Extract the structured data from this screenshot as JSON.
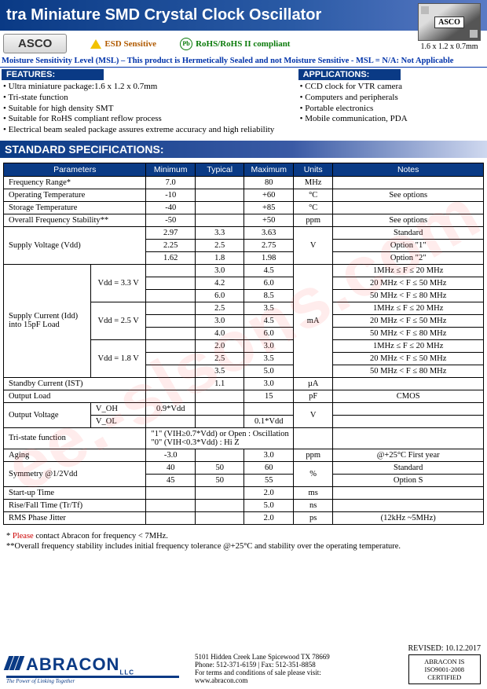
{
  "title": "tra Miniature SMD Crystal Clock Oscillator",
  "part": "ASCO",
  "esd_label": "ESD Sensitive",
  "rohs_label": "RoHS/RoHS II compliant",
  "chip_dim": "1.6 x 1.2 x 0.7mm",
  "chip_text": "ASCO",
  "msl": "Moisture Sensitivity Level (MSL) – This product is Hermetically Sealed and not Moisture Sensitive - MSL = N/A: Not Applicable",
  "features_label": "FEATURES:",
  "features": [
    "Ultra miniature package:1.6 x 1.2 x 0.7mm",
    "Tri-state function",
    "Suitable for high density SMT",
    "Suitable for RoHS compliant reflow process",
    "Electrical beam sealed package assures extreme accuracy and high reliability"
  ],
  "apps_label": "APPLICATIONS:",
  "apps": [
    "CCD clock for VTR camera",
    "Computers and peripherals",
    "Portable electronics",
    "Mobile communication, PDA"
  ],
  "spec_header": "STANDARD SPECIFICATIONS:",
  "cols": [
    "Parameters",
    "Minimum",
    "Typical",
    "Maximum",
    "Units",
    "Notes"
  ],
  "r_freq": {
    "p": "Frequency Range*",
    "min": "7.0",
    "typ": "",
    "max": "80",
    "u": "MHz",
    "n": ""
  },
  "r_optemp": {
    "p": "Operating Temperature",
    "min": "-10",
    "typ": "",
    "max": "+60",
    "u": "°C",
    "n": "See options"
  },
  "r_sttemp": {
    "p": "Storage Temperature",
    "min": "-40",
    "typ": "",
    "max": "+85",
    "u": "°C",
    "n": ""
  },
  "r_stab": {
    "p": "Overall Frequency Stability**",
    "min": "-50",
    "typ": "",
    "max": "+50",
    "u": "ppm",
    "n": "See options"
  },
  "vdd": {
    "p": "Supply Voltage (Vdd)",
    "u": "V",
    "rows": [
      {
        "min": "2.97",
        "typ": "3.3",
        "max": "3.63",
        "n": "Standard"
      },
      {
        "min": "2.25",
        "typ": "2.5",
        "max": "2.75",
        "n": "Option \"1\""
      },
      {
        "min": "1.62",
        "typ": "1.8",
        "max": "1.98",
        "n": "Option \"2\""
      }
    ]
  },
  "idd": {
    "p": "Supply Current (Idd) into 15pF Load",
    "u": "mA",
    "groups": [
      {
        "sub": "Vdd = 3.3 V",
        "rows": [
          {
            "typ": "3.0",
            "max": "4.5",
            "n": "1MHz ≤ F ≤ 20 MHz"
          },
          {
            "typ": "4.2",
            "max": "6.0",
            "n": "20 MHz < F ≤ 50 MHz"
          },
          {
            "typ": "6.0",
            "max": "8.5",
            "n": "50 MHz < F ≤ 80 MHz"
          }
        ]
      },
      {
        "sub": "Vdd = 2.5 V",
        "rows": [
          {
            "typ": "2.5",
            "max": "3.5",
            "n": "1MHz ≤ F ≤ 20 MHz"
          },
          {
            "typ": "3.0",
            "max": "4.5",
            "n": "20 MHz < F ≤ 50 MHz"
          },
          {
            "typ": "4.0",
            "max": "6.0",
            "n": "50 MHz < F ≤ 80 MHz"
          }
        ]
      },
      {
        "sub": "Vdd = 1.8 V",
        "rows": [
          {
            "typ": "2.0",
            "max": "3.0",
            "n": "1MHz ≤ F ≤ 20 MHz"
          },
          {
            "typ": "2.5",
            "max": "3.5",
            "n": "20 MHz < F ≤ 50 MHz"
          },
          {
            "typ": "3.5",
            "max": "5.0",
            "n": "50 MHz < F ≤ 80 MHz"
          }
        ]
      }
    ]
  },
  "r_ist": {
    "p": "Standby Current (IST)",
    "min": "",
    "typ": "1.1",
    "max": "3.0",
    "u": "µA",
    "n": ""
  },
  "r_load": {
    "p": "Output Load",
    "min": "",
    "typ": "",
    "max": "15",
    "u": "pF",
    "n": "CMOS"
  },
  "vout": {
    "p": "Output Voltage",
    "u": "V",
    "rows": [
      {
        "sub": "V_OH",
        "min": "0.9*Vdd",
        "typ": "",
        "max": ""
      },
      {
        "sub": "V_OL",
        "min": "",
        "typ": "",
        "max": "0.1*Vdd"
      }
    ]
  },
  "r_tri": {
    "p": "Tri-state function",
    "text": "\"1\" (VIH≥0.7*Vdd) or Open : Oscillation\n\"0\" (VIH<0.3*Vdd) : Hi Z"
  },
  "r_aging": {
    "p": "Aging",
    "min": "-3.0",
    "typ": "",
    "max": "3.0",
    "u": "ppm",
    "n": "@+25°C  First year"
  },
  "sym": {
    "p": "Symmetry @1/2Vdd",
    "u": "%",
    "rows": [
      {
        "min": "40",
        "typ": "50",
        "max": "60",
        "n": "Standard"
      },
      {
        "min": "45",
        "typ": "50",
        "max": "55",
        "n": "Option S"
      }
    ]
  },
  "r_start": {
    "p": "Start-up Time",
    "min": "",
    "typ": "",
    "max": "2.0",
    "u": "ms",
    "n": ""
  },
  "r_rise": {
    "p": "Rise/Fall Time (Tr/Tf)",
    "min": "",
    "typ": "",
    "max": "5.0",
    "u": "ns",
    "n": ""
  },
  "r_jit": {
    "p": "RMS Phase Jitter",
    "min": "",
    "typ": "",
    "max": "2.0",
    "u": "ps",
    "n": "(12kHz ~5MHz)"
  },
  "foot1_pre": "* ",
  "foot1_red": "Please",
  "foot1_post": " contact Abracon for frequency < 7MHz.",
  "foot2": "**Overall frequency stability includes initial frequency tolerance @+25°C and stability over the operating temperature.",
  "revised": "REVISED: 10.12.2017",
  "logo": "ABRACON",
  "logo_sub": "LLC",
  "logo_tag": "The Power of Linking Together",
  "addr1": "5101 Hidden Creek Lane Spicewood TX 78669",
  "addr2": "Phone: 512-371-6159 | Fax: 512-351-8858",
  "addr3": "For terms and conditions of sale please visit:",
  "addr4": "www.abracon.com",
  "cert1": "ABRACON IS",
  "cert2": "ISO9001-2008",
  "cert3": "CERTIFIED",
  "watermark": "ee.-slsons.com"
}
